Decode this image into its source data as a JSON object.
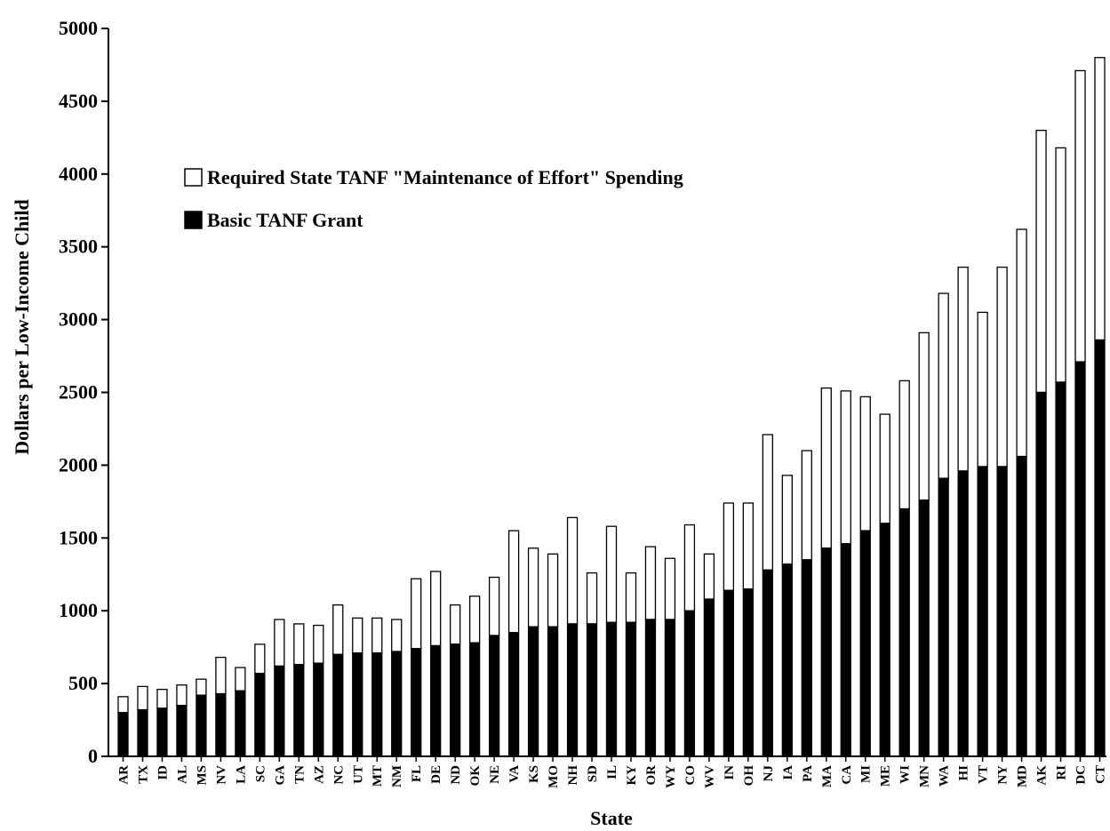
{
  "chart_data": {
    "type": "bar",
    "stacked": true,
    "xlabel": "State",
    "ylabel": "Dollars per Low-Income Child",
    "ylim": [
      0,
      5000
    ],
    "yticks": [
      0,
      500,
      1000,
      1500,
      2000,
      2500,
      3000,
      3500,
      4000,
      4500,
      5000
    ],
    "grid": false,
    "legend_position": "upper-left",
    "categories": [
      "AR",
      "TX",
      "ID",
      "AL",
      "MS",
      "NV",
      "LA",
      "SC",
      "GA",
      "TN",
      "AZ",
      "NC",
      "UT",
      "MT",
      "NM",
      "FL",
      "DE",
      "ND",
      "OK",
      "NE",
      "VA",
      "KS",
      "MO",
      "NH",
      "SD",
      "IL",
      "KY",
      "OR",
      "WY",
      "CO",
      "WV",
      "IN",
      "OH",
      "NJ",
      "IA",
      "PA",
      "MA",
      "CA",
      "MI",
      "ME",
      "WI",
      "MN",
      "WA",
      "HI",
      "VT",
      "NY",
      "MD",
      "AK",
      "RI",
      "DC",
      "CT"
    ],
    "series": [
      {
        "name": "Basic TANF Grant",
        "color": "#000000",
        "values": [
          300,
          320,
          330,
          350,
          420,
          430,
          450,
          570,
          620,
          630,
          640,
          700,
          710,
          710,
          720,
          740,
          760,
          770,
          780,
          830,
          850,
          890,
          890,
          910,
          910,
          920,
          920,
          940,
          940,
          1000,
          1080,
          1140,
          1150,
          1280,
          1320,
          1350,
          1430,
          1460,
          1550,
          1600,
          1700,
          1760,
          1910,
          1960,
          1990,
          1990,
          2060,
          2500,
          2570,
          2710,
          2860
        ]
      },
      {
        "name": "Required State TANF \"Maintenance of Effort\" Spending",
        "color": "#ffffff",
        "values": [
          110,
          160,
          130,
          140,
          110,
          250,
          160,
          200,
          320,
          280,
          260,
          340,
          240,
          240,
          220,
          480,
          510,
          270,
          320,
          400,
          700,
          540,
          500,
          730,
          350,
          660,
          340,
          500,
          420,
          590,
          310,
          600,
          590,
          930,
          610,
          750,
          1100,
          1050,
          920,
          750,
          880,
          1150,
          1270,
          1400,
          1060,
          1370,
          1560,
          1800,
          1610,
          2000,
          1940
        ]
      }
    ]
  }
}
